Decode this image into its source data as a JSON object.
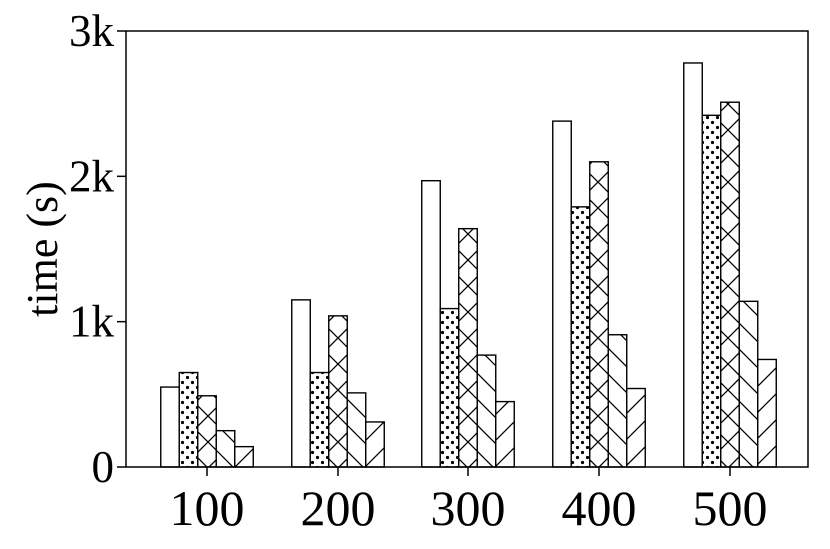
{
  "chart_data": {
    "type": "bar",
    "title": "",
    "xlabel": "",
    "ylabel": "time (s)",
    "ylim": [
      0,
      3000
    ],
    "yticks": [
      0,
      1000,
      2000,
      3000
    ],
    "ytick_labels": [
      "0",
      "1k",
      "2k",
      "3k"
    ],
    "categories": [
      "100",
      "200",
      "300",
      "400",
      "500"
    ],
    "grid": false,
    "legend": "none",
    "bar_color": "#ffffff",
    "edge_color": "#000000",
    "series": [
      {
        "pattern": "none",
        "values": [
          550,
          1150,
          1970,
          2380,
          2780
        ]
      },
      {
        "pattern": "dots",
        "values": [
          650,
          650,
          1090,
          1790,
          2420
        ]
      },
      {
        "pattern": "x-hatch",
        "values": [
          490,
          1040,
          1640,
          2100,
          2510
        ]
      },
      {
        "pattern": "backslash-hatch",
        "values": [
          250,
          510,
          770,
          910,
          1140
        ]
      },
      {
        "pattern": "slash-hatch",
        "values": [
          140,
          310,
          450,
          540,
          740
        ]
      }
    ]
  }
}
